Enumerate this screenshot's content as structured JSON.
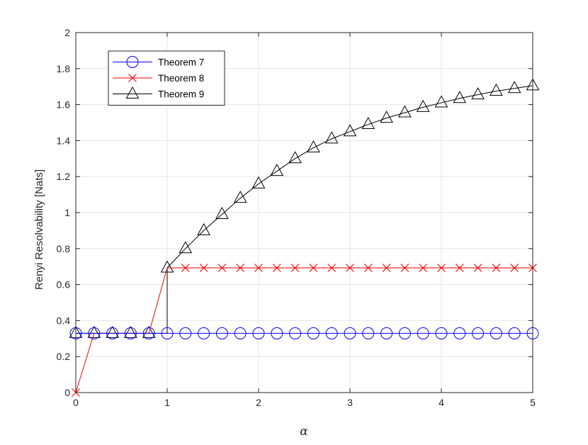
{
  "chart_data": {
    "type": "line",
    "title": "",
    "xlabel": "α",
    "ylabel": "Renyi Resolvability [Nats]",
    "xlim": [
      0,
      5
    ],
    "ylim": [
      0,
      2
    ],
    "xticks": [
      0,
      1,
      2,
      3,
      4,
      5
    ],
    "yticks": [
      0,
      0.2,
      0.4,
      0.6,
      0.8,
      1,
      1.2,
      1.4,
      1.6,
      1.8,
      2
    ],
    "grid": true,
    "legend_position": "top-left",
    "x": [
      0,
      0.2,
      0.4,
      0.6,
      0.8,
      1,
      1.2,
      1.4,
      1.6,
      1.8,
      2,
      2.2,
      2.4,
      2.6,
      2.8,
      3,
      3.2,
      3.4,
      3.6,
      3.8,
      4,
      4.2,
      4.4,
      4.6,
      4.8,
      5
    ],
    "series": [
      {
        "name": "Theorem 7",
        "color": "#0000ff",
        "marker": "circle",
        "values": [
          0.329,
          0.329,
          0.329,
          0.329,
          0.329,
          0.329,
          0.329,
          0.329,
          0.329,
          0.329,
          0.329,
          0.329,
          0.329,
          0.329,
          0.329,
          0.329,
          0.329,
          0.329,
          0.329,
          0.329,
          0.329,
          0.329,
          0.329,
          0.329,
          0.329,
          0.329
        ]
      },
      {
        "name": "Theorem 8",
        "color": "#ff0000",
        "marker": "x",
        "values": [
          0,
          0.329,
          0.329,
          0.329,
          0.329,
          0.693,
          0.693,
          0.693,
          0.693,
          0.693,
          0.693,
          0.693,
          0.693,
          0.693,
          0.693,
          0.693,
          0.693,
          0.693,
          0.693,
          0.693,
          0.693,
          0.693,
          0.693,
          0.693,
          0.693,
          0.693
        ],
        "markers_at_x": [
          0,
          1.2,
          1.4,
          1.6,
          1.8,
          2,
          2.2,
          2.4,
          2.6,
          2.8,
          3,
          3.2,
          3.4,
          3.6,
          3.8,
          4,
          4.2,
          4.4,
          4.6,
          4.8,
          5
        ]
      },
      {
        "name": "Theorem 9",
        "color": "#000000",
        "marker": "triangle",
        "values": [
          0.329,
          0.329,
          0.329,
          0.329,
          0.329,
          0.693,
          0.8,
          0.9,
          0.99,
          1.08,
          1.16,
          1.23,
          1.3,
          1.36,
          1.41,
          1.45,
          1.49,
          1.525,
          1.555,
          1.585,
          1.61,
          1.635,
          1.655,
          1.675,
          1.69,
          1.705
        ]
      }
    ],
    "vertical_jumps": [
      {
        "series": "Theorem 8",
        "x": 0,
        "from": 0,
        "to": 0.329
      },
      {
        "series": "Theorem 9",
        "x": 1,
        "from": 0.329,
        "to": 0.693
      }
    ]
  }
}
